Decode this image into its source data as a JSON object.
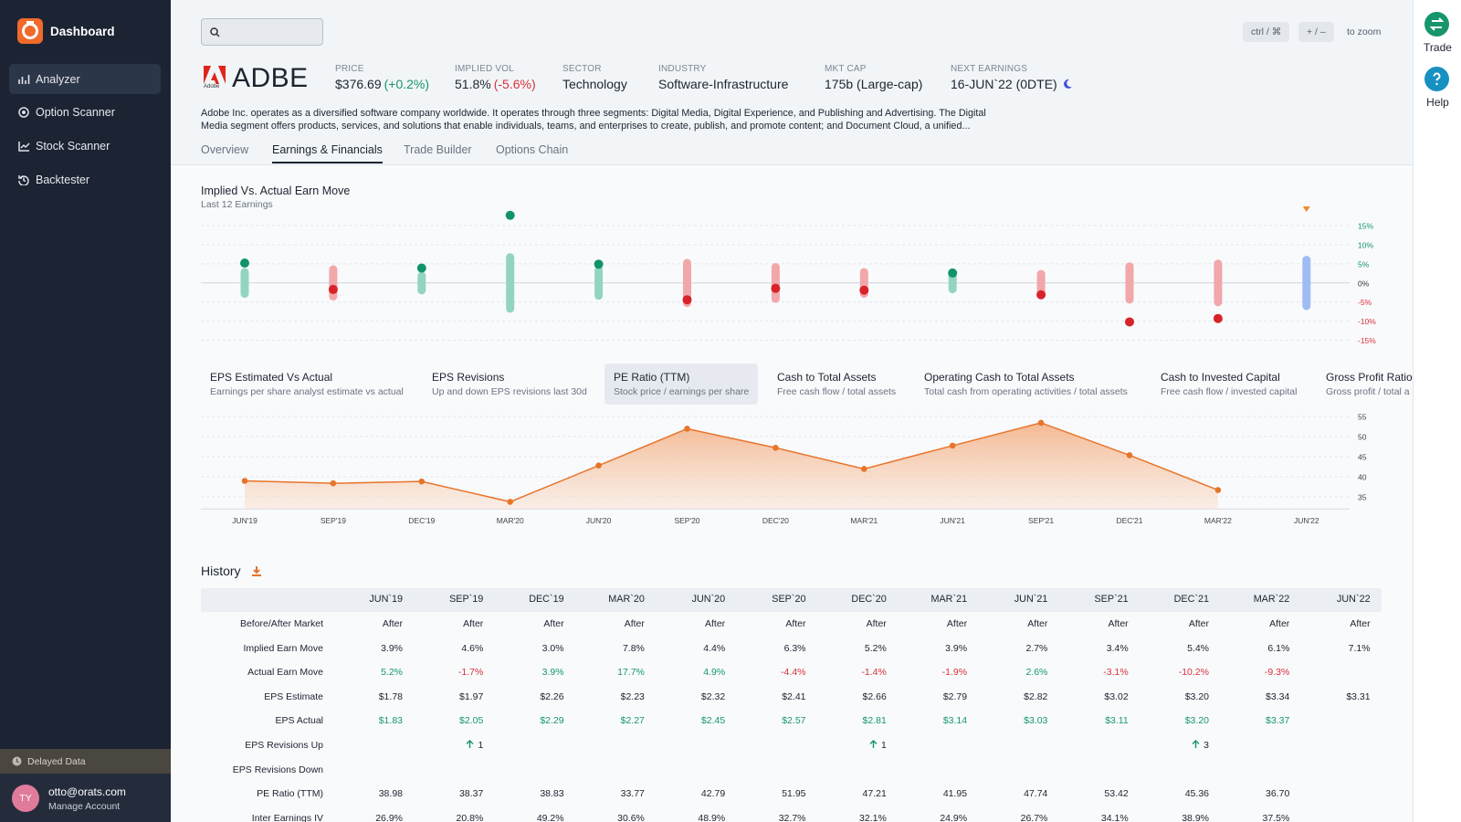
{
  "sidebar": {
    "brand": "Dashboard",
    "nav": [
      "Analyzer",
      "Option Scanner",
      "Stock Scanner",
      "Backtester"
    ],
    "active": 0,
    "delayed": "Delayed Data",
    "user": {
      "initials": "TY",
      "email": "otto@orats.com",
      "manage": "Manage Account"
    }
  },
  "rail": {
    "trade": "Trade",
    "help": "Help"
  },
  "topbar": {
    "keys": [
      "ctrl / ⌘",
      "+ / –"
    ],
    "zoom": "to zoom"
  },
  "ticker": {
    "logo_text": "Adobe",
    "symbol": "ADBE",
    "stats": [
      {
        "label": "PRICE",
        "value": "$376.69",
        "change": "(+0.2%)"
      },
      {
        "label": "IMPLIED VOL",
        "value": "51.8%",
        "change": "(-5.6%)"
      },
      {
        "label": "SECTOR",
        "value": "Technology"
      },
      {
        "label": "INDUSTRY",
        "value": "Software-Infrastructure"
      },
      {
        "label": "MKT CAP",
        "value": "175b (Large-cap)"
      },
      {
        "label": "NEXT EARNINGS",
        "value": "16-JUN`22 (0DTE)"
      }
    ],
    "description": "Adobe Inc. operates as a diversified software company worldwide. It operates through three segments: Digital Media, Digital Experience, and Publishing and Advertising. The Digital Media segment offers products, services, and solutions that enable individuals, teams, and enterprises to create, publish, and promote content; and Document Cloud, a unified..."
  },
  "tabs": {
    "items": [
      "Overview",
      "Earnings & Financials",
      "Trade Builder",
      "Options Chain"
    ],
    "active": 1
  },
  "implied_chart": {
    "type": "range",
    "title": "Implied Vs. Actual Earn Move",
    "subtitle": "Last 12 Earnings",
    "implied": [
      3.9,
      4.6,
      3.0,
      7.8,
      4.4,
      6.3,
      5.2,
      3.9,
      2.7,
      3.4,
      5.4,
      6.1,
      7.1
    ],
    "actual": [
      5.2,
      -1.7,
      3.9,
      17.7,
      4.9,
      -4.4,
      -1.4,
      -1.9,
      2.6,
      -3.1,
      -10.2,
      -9.3,
      null
    ],
    "ylim": [
      -17.5,
      17.5
    ],
    "yticks": [
      {
        "value": 15,
        "label": "15%"
      },
      {
        "value": 10,
        "label": "10%"
      },
      {
        "value": 5,
        "label": "5%"
      },
      {
        "value": 0,
        "label": "0%"
      },
      {
        "value": -5,
        "label": "-5%"
      },
      {
        "value": -10,
        "label": "-10%"
      },
      {
        "value": -15,
        "label": "-15%"
      }
    ],
    "grid": true,
    "colors": {
      "up_bar": "#93d4c1",
      "down_bar": "#f2a7aa",
      "pending_bar": "#9fbcf2",
      "up_dot": "#11936a",
      "down_dot": "#d8232a",
      "marker": "#f08a2c"
    }
  },
  "metrics": {
    "items": [
      {
        "title": "EPS Estimated Vs Actual",
        "subtitle": "Earnings per share analyst estimate vs actual"
      },
      {
        "title": "EPS Revisions",
        "subtitle": "Up and down EPS revisions last 30d"
      },
      {
        "title": "PE Ratio (TTM)",
        "subtitle": "Stock price / earnings per share"
      },
      {
        "title": "Cash to Total Assets",
        "subtitle": "Free cash flow / total assets"
      },
      {
        "title": "Operating Cash to Total Assets",
        "subtitle": "Total cash from operating activities / total assets"
      },
      {
        "title": "Cash to Invested Capital",
        "subtitle": "Free cash flow / invested capital"
      },
      {
        "title": "Gross Profit Ratio",
        "subtitle": "Gross profit / total a"
      }
    ],
    "active": 2
  },
  "pe_chart": {
    "type": "area",
    "categories": [
      "JUN'19",
      "SEP'19",
      "DEC'19",
      "MAR'20",
      "JUN'20",
      "SEP'20",
      "DEC'20",
      "MAR'21",
      "JUN'21",
      "SEP'21",
      "DEC'21",
      "MAR'22",
      "JUN'22"
    ],
    "values": [
      38.98,
      38.37,
      38.83,
      33.77,
      42.79,
      51.95,
      47.21,
      41.95,
      47.74,
      53.42,
      45.36,
      36.7,
      null
    ],
    "ylim": [
      32,
      56
    ],
    "yticks": [
      35,
      40,
      45,
      50,
      55
    ],
    "grid": true,
    "color": "#e8742a"
  },
  "history": {
    "title": "History",
    "columns": [
      "JUN`19",
      "SEP`19",
      "DEC`19",
      "MAR`20",
      "JUN`20",
      "SEP`20",
      "DEC`20",
      "MAR`21",
      "JUN`21",
      "SEP`21",
      "DEC`21",
      "MAR`22",
      "JUN`22"
    ],
    "rows": [
      {
        "label": "Before/After Market",
        "cells": [
          "After",
          "After",
          "After",
          "After",
          "After",
          "After",
          "After",
          "After",
          "After",
          "After",
          "After",
          "After",
          "After"
        ]
      },
      {
        "label": "Implied Earn Move",
        "cells": [
          "3.9%",
          "4.6%",
          "3.0%",
          "7.8%",
          "4.4%",
          "6.3%",
          "5.2%",
          "3.9%",
          "2.7%",
          "3.4%",
          "5.4%",
          "6.1%",
          "7.1%"
        ]
      },
      {
        "label": "Actual Earn Move",
        "tone": "sign",
        "cells": [
          "5.2%",
          "-1.7%",
          "3.9%",
          "17.7%",
          "4.9%",
          "-4.4%",
          "-1.4%",
          "-1.9%",
          "2.6%",
          "-3.1%",
          "-10.2%",
          "-9.3%",
          null
        ]
      },
      {
        "label": "EPS Estimate",
        "cells": [
          "$1.78",
          "$1.97",
          "$2.26",
          "$2.23",
          "$2.32",
          "$2.41",
          "$2.66",
          "$2.79",
          "$2.82",
          "$3.02",
          "$3.20",
          "$3.34",
          "$3.31"
        ]
      },
      {
        "label": "EPS Actual",
        "tone": "positive",
        "cells": [
          "$1.83",
          "$2.05",
          "$2.29",
          "$2.27",
          "$2.45",
          "$2.57",
          "$2.81",
          "$3.14",
          "$3.03",
          "$3.11",
          "$3.20",
          "$3.37",
          null
        ]
      },
      {
        "label": "EPS Revisions Up",
        "tone": "arrow",
        "cells": [
          null,
          "1",
          null,
          null,
          null,
          null,
          "1",
          null,
          null,
          null,
          "3",
          null,
          null
        ]
      },
      {
        "label": "EPS Revisions Down",
        "cells": [
          null,
          null,
          null,
          null,
          null,
          null,
          null,
          null,
          null,
          null,
          null,
          null,
          null
        ]
      },
      {
        "label": "PE Ratio (TTM)",
        "cells": [
          "38.98",
          "38.37",
          "38.83",
          "33.77",
          "42.79",
          "51.95",
          "47.21",
          "41.95",
          "47.74",
          "53.42",
          "45.36",
          "36.70",
          null
        ]
      },
      {
        "label": "Inter Earnings IV",
        "cells": [
          "26.9%",
          "20.8%",
          "49.2%",
          "30.6%",
          "48.9%",
          "32.7%",
          "32.1%",
          "24.9%",
          "26.7%",
          "34.1%",
          "38.9%",
          "37.5%",
          null
        ]
      }
    ]
  }
}
